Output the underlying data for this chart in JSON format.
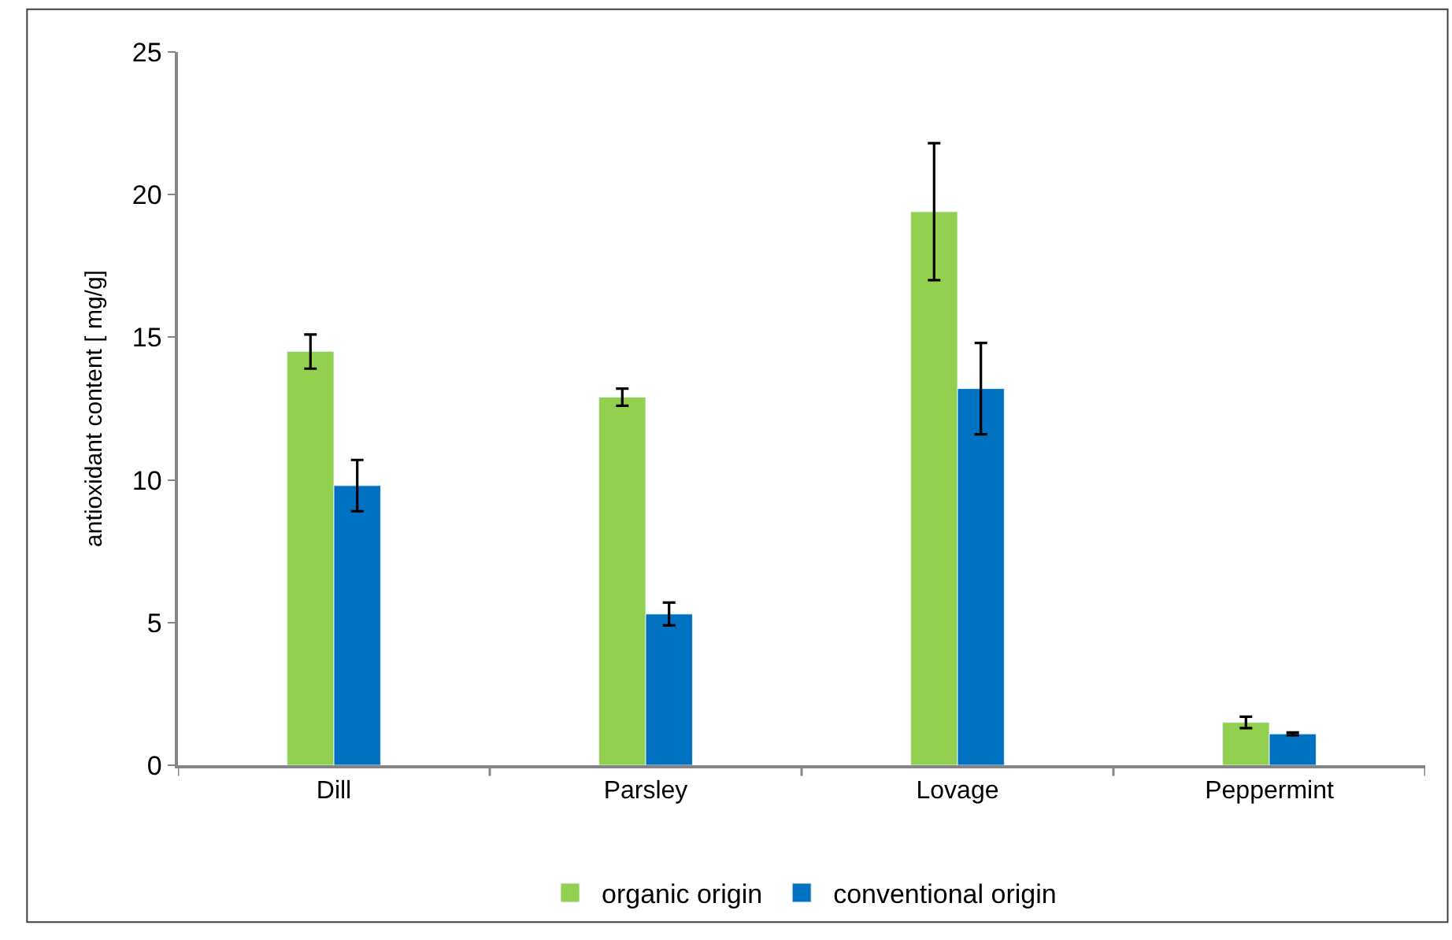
{
  "chart_data": {
    "type": "bar",
    "ylabel": "antioxidant content [ mg/g]",
    "categories": [
      "Dill",
      "Parsley",
      "Lovage",
      "Peppermint"
    ],
    "series": [
      {
        "name": "organic origin",
        "color": "#92d050",
        "values": [
          14.5,
          12.9,
          19.4,
          1.5
        ],
        "errors": [
          0.6,
          0.3,
          2.4,
          0.2
        ]
      },
      {
        "name": "conventional origin",
        "color": "#0070c0",
        "values": [
          9.8,
          5.3,
          13.2,
          1.1
        ],
        "errors": [
          0.9,
          0.4,
          1.6,
          0.05
        ]
      }
    ],
    "ylim": [
      0,
      25
    ],
    "yticks": [
      0,
      5,
      10,
      15,
      20,
      25
    ],
    "legend": "bottom"
  }
}
